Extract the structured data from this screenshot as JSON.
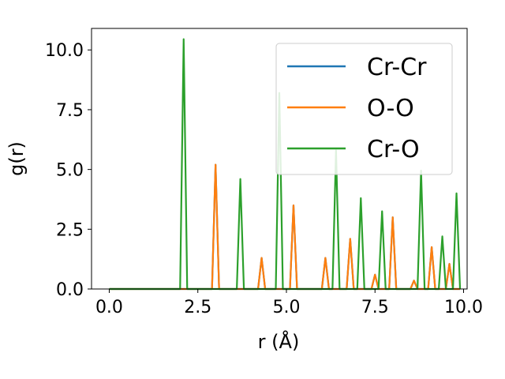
{
  "chart_data": {
    "type": "line",
    "xlabel": "r (Å)",
    "ylabel": "g(r)",
    "xlim": [
      -0.5,
      10.1
    ],
    "ylim": [
      0,
      10.9
    ],
    "xticks": [
      0.0,
      2.5,
      5.0,
      7.5,
      10.0
    ],
    "xtick_labels": [
      "0.0",
      "2.5",
      "5.0",
      "7.5",
      "10.0"
    ],
    "yticks": [
      0.0,
      2.5,
      5.0,
      7.5,
      10.0
    ],
    "ytick_labels": [
      "0.0",
      "2.5",
      "5.0",
      "7.5",
      "10.0"
    ],
    "grid": false,
    "legend_position": "top-right",
    "series": [
      {
        "name": "Cr-Cr",
        "color": "#1f77b4",
        "x": [
          0.0,
          2.9,
          3.0,
          3.1,
          4.2,
          4.3,
          4.4,
          5.1,
          5.2,
          5.3,
          6.0,
          6.1,
          6.2,
          6.7,
          6.8,
          6.9,
          7.4,
          7.5,
          7.6,
          7.9,
          8.0,
          8.1,
          8.5,
          8.6,
          8.7,
          9.0,
          9.1,
          9.2,
          9.5,
          9.6,
          9.7,
          9.9
        ],
        "y": [
          0,
          0,
          5.2,
          0,
          0,
          1.3,
          0,
          0,
          3.5,
          0,
          0,
          1.3,
          0,
          0,
          2.1,
          0,
          0,
          0.6,
          0,
          0,
          3.0,
          0,
          0,
          0.35,
          0,
          0,
          1.75,
          0,
          0,
          1.05,
          0,
          0
        ]
      },
      {
        "name": "O-O",
        "color": "#ff7f0e",
        "x": [
          0.0,
          2.9,
          3.0,
          3.1,
          4.2,
          4.3,
          4.4,
          5.1,
          5.2,
          5.3,
          6.0,
          6.1,
          6.2,
          6.7,
          6.8,
          6.9,
          7.4,
          7.5,
          7.6,
          7.9,
          8.0,
          8.1,
          8.5,
          8.6,
          8.7,
          9.0,
          9.1,
          9.2,
          9.5,
          9.6,
          9.7,
          9.9
        ],
        "y": [
          0,
          0,
          5.2,
          0,
          0,
          1.3,
          0,
          0,
          3.5,
          0,
          0,
          1.3,
          0,
          0,
          2.1,
          0,
          0,
          0.6,
          0,
          0,
          3.0,
          0,
          0,
          0.35,
          0,
          0,
          1.75,
          0,
          0,
          1.05,
          0,
          0
        ]
      },
      {
        "name": "Cr-O",
        "color": "#2ca02c",
        "x": [
          0.0,
          2.0,
          2.1,
          2.2,
          3.6,
          3.7,
          3.8,
          4.7,
          4.8,
          4.9,
          6.3,
          6.4,
          6.5,
          7.0,
          7.1,
          7.2,
          7.6,
          7.7,
          7.8,
          8.7,
          8.8,
          8.9,
          9.3,
          9.4,
          9.5,
          9.7,
          9.8,
          9.9
        ],
        "y": [
          0,
          0,
          10.45,
          0,
          0,
          4.6,
          0,
          0,
          8.2,
          0,
          0,
          5.8,
          0,
          0,
          3.8,
          0,
          0,
          3.25,
          0,
          0,
          4.95,
          0,
          0,
          2.2,
          0,
          0,
          4.0,
          0
        ]
      }
    ]
  }
}
